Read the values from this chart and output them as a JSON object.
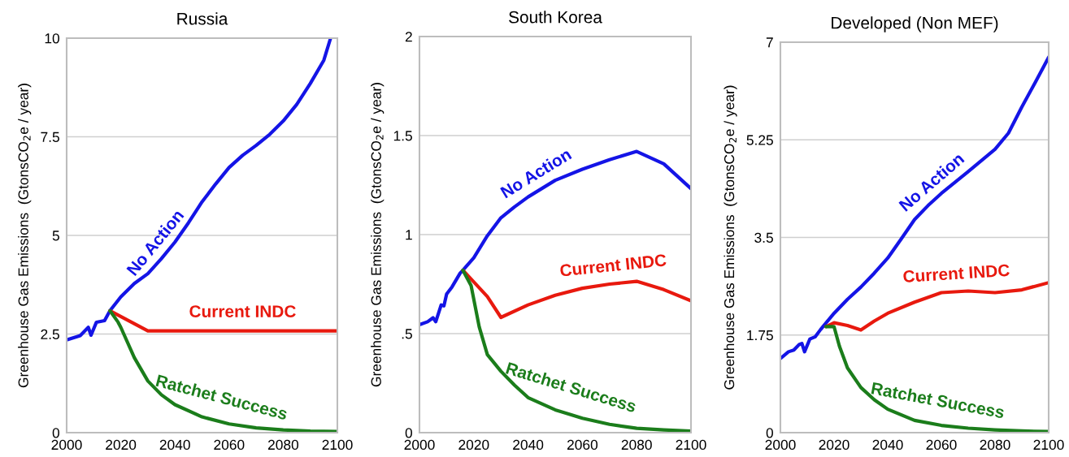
{
  "chart_data": [
    {
      "type": "line",
      "title": "Russia",
      "ylabel": "Greenhouse Gas Emissions  (GtonsCO$_{2}$e / year)",
      "xlim": [
        2000,
        2100
      ],
      "xticks": [
        2000,
        2020,
        2040,
        2060,
        2080,
        2100
      ],
      "ylim": [
        0,
        10
      ],
      "yticks": [
        0,
        2.5,
        5,
        7.5,
        10
      ],
      "grid": "y",
      "line_style": "solid",
      "marker": "none",
      "series": [
        {
          "name": "No Action",
          "color": "#1414e6",
          "x": [
            2000,
            2005,
            2008,
            2009,
            2011,
            2014,
            2016,
            2020,
            2025,
            2030,
            2035,
            2040,
            2045,
            2050,
            2055,
            2060,
            2065,
            2070,
            2075,
            2080,
            2085,
            2090,
            2095,
            2097.5
          ],
          "values": [
            2.35,
            2.46,
            2.67,
            2.47,
            2.8,
            2.84,
            3.09,
            3.44,
            3.78,
            4.03,
            4.41,
            4.83,
            5.32,
            5.85,
            6.3,
            6.72,
            7.03,
            7.28,
            7.56,
            7.9,
            8.32,
            8.85,
            9.44,
            10.0
          ]
        },
        {
          "name": "Current INDC",
          "color": "#e8190e",
          "x": [
            2016,
            2030,
            2100
          ],
          "values": [
            3.09,
            2.58,
            2.58
          ]
        },
        {
          "name": "Ratchet Success",
          "color": "#1b7d1b",
          "x": [
            2016,
            2019,
            2020,
            2025,
            2030,
            2035,
            2040,
            2050,
            2060,
            2070,
            2080,
            2090,
            2100
          ],
          "values": [
            3.09,
            2.8,
            2.67,
            1.9,
            1.31,
            0.96,
            0.71,
            0.4,
            0.22,
            0.12,
            0.07,
            0.04,
            0.03
          ]
        }
      ]
    },
    {
      "type": "line",
      "title": "South Korea",
      "ylabel": "Greenhouse Gas Emissions  (GtonsCO$_{2}$e / year)",
      "xlim": [
        2000,
        2100
      ],
      "xticks": [
        2000,
        2020,
        2040,
        2060,
        2080,
        2100
      ],
      "ylim": [
        0,
        2
      ],
      "yticks": [
        0,
        {
          "value": 0.5,
          "label": ".5"
        },
        1,
        1.5,
        2
      ],
      "grid": "y",
      "line_style": "solid",
      "marker": "none",
      "series": [
        {
          "name": "No Action",
          "color": "#1414e6",
          "x": [
            2000,
            2003,
            2005,
            2006,
            2008,
            2009,
            2010,
            2012,
            2015,
            2016,
            2020,
            2025,
            2030,
            2035,
            2040,
            2050,
            2060,
            2070,
            2080,
            2090,
            2100
          ],
          "values": [
            0.545,
            0.56,
            0.58,
            0.56,
            0.645,
            0.64,
            0.7,
            0.736,
            0.806,
            0.82,
            0.883,
            0.994,
            1.085,
            1.14,
            1.19,
            1.274,
            1.33,
            1.378,
            1.42,
            1.357,
            1.232
          ]
        },
        {
          "name": "Current INDC",
          "color": "#e8190e",
          "x": [
            2016,
            2025,
            2030,
            2040,
            2050,
            2060,
            2070,
            2080,
            2090,
            2100
          ],
          "values": [
            0.82,
            0.687,
            0.582,
            0.645,
            0.694,
            0.729,
            0.75,
            0.764,
            0.722,
            0.666
          ]
        },
        {
          "name": "Ratchet Success",
          "color": "#1b7d1b",
          "x": [
            2016,
            2019,
            2022,
            2025,
            2030,
            2035,
            2040,
            2050,
            2060,
            2070,
            2080,
            2090,
            2100
          ],
          "values": [
            0.82,
            0.743,
            0.534,
            0.394,
            0.31,
            0.24,
            0.177,
            0.115,
            0.073,
            0.042,
            0.022,
            0.014,
            0.008
          ]
        }
      ]
    },
    {
      "type": "line",
      "title": "Developed (Non MEF)",
      "ylabel": "Greenhouse Gas Emissions  (GtonsCO$_{2}$e / year)",
      "xlim": [
        2000,
        2100
      ],
      "xticks": [
        2000,
        2020,
        2040,
        2060,
        2080,
        2100
      ],
      "ylim": [
        0,
        7
      ],
      "yticks": [
        0,
        1.75,
        3.5,
        5.25,
        7
      ],
      "grid": "y",
      "line_style": "solid",
      "marker": "none",
      "series": [
        {
          "name": "No Action",
          "color": "#1414e6",
          "x": [
            2000,
            2003,
            2005,
            2007,
            2008,
            2009,
            2011,
            2013,
            2015,
            2020,
            2025,
            2030,
            2035,
            2040,
            2045,
            2050,
            2055,
            2060,
            2070,
            2080,
            2085,
            2090,
            2095,
            2100
          ],
          "values": [
            1.33,
            1.45,
            1.48,
            1.58,
            1.6,
            1.45,
            1.68,
            1.72,
            1.85,
            2.14,
            2.39,
            2.61,
            2.86,
            3.13,
            3.47,
            3.82,
            4.07,
            4.29,
            4.68,
            5.08,
            5.37,
            5.84,
            6.28,
            6.73
          ]
        },
        {
          "name": "Current INDC",
          "color": "#e8190e",
          "x": [
            2017,
            2020,
            2025,
            2030,
            2035,
            2040,
            2050,
            2060,
            2070,
            2080,
            2090,
            2100
          ],
          "values": [
            1.9,
            1.97,
            1.92,
            1.84,
            2.0,
            2.14,
            2.34,
            2.51,
            2.54,
            2.51,
            2.56,
            2.69
          ]
        },
        {
          "name": "Ratchet Success",
          "color": "#1b7d1b",
          "x": [
            2017,
            2020,
            2022,
            2025,
            2030,
            2035,
            2040,
            2050,
            2060,
            2070,
            2080,
            2090,
            2100
          ],
          "values": [
            1.9,
            1.9,
            1.55,
            1.16,
            0.81,
            0.59,
            0.42,
            0.22,
            0.13,
            0.08,
            0.05,
            0.03,
            0.02
          ]
        }
      ]
    }
  ]
}
